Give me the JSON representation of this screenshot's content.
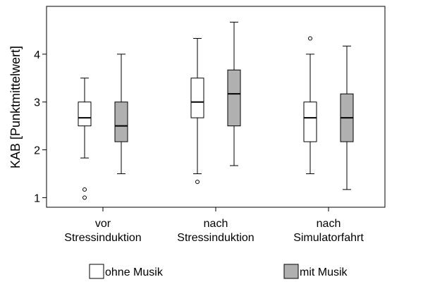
{
  "chart_data": {
    "type": "boxplot",
    "title": "",
    "ylabel": "KAB [Punktmittelwert]",
    "xlabel": "",
    "ylim": [
      0.8,
      5.0
    ],
    "yticks": [
      1,
      2,
      3,
      4
    ],
    "grid": false,
    "legend": "bottom",
    "categories": [
      {
        "line1": "vor",
        "line2": "Stressinduktion"
      },
      {
        "line1": "nach",
        "line2": "Stressinduktion"
      },
      {
        "line1": "nach",
        "line2": "Simulatorfahrt"
      }
    ],
    "series": [
      {
        "name": "ohne Musik",
        "color": "#ffffff",
        "boxes": [
          {
            "whisker_low": 1.83,
            "q1": 2.5,
            "median": 2.67,
            "q3": 3.0,
            "whisker_high": 3.5,
            "outliers": [
              1.17,
              1.0
            ]
          },
          {
            "whisker_low": 1.5,
            "q1": 2.67,
            "median": 3.0,
            "q3": 3.5,
            "whisker_high": 4.33,
            "outliers": [
              1.33
            ]
          },
          {
            "whisker_low": 1.5,
            "q1": 2.17,
            "median": 2.67,
            "q3": 3.0,
            "whisker_high": 4.0,
            "outliers": [
              4.33
            ]
          }
        ]
      },
      {
        "name": "mit Musik",
        "color": "#b0b0b0",
        "boxes": [
          {
            "whisker_low": 1.5,
            "q1": 2.17,
            "median": 2.5,
            "q3": 3.0,
            "whisker_high": 4.0,
            "outliers": []
          },
          {
            "whisker_low": 1.67,
            "q1": 2.5,
            "median": 3.17,
            "q3": 3.67,
            "whisker_high": 4.67,
            "outliers": []
          },
          {
            "whisker_low": 1.17,
            "q1": 2.17,
            "median": 2.67,
            "q3": 3.17,
            "whisker_high": 4.17,
            "outliers": []
          }
        ]
      }
    ]
  }
}
